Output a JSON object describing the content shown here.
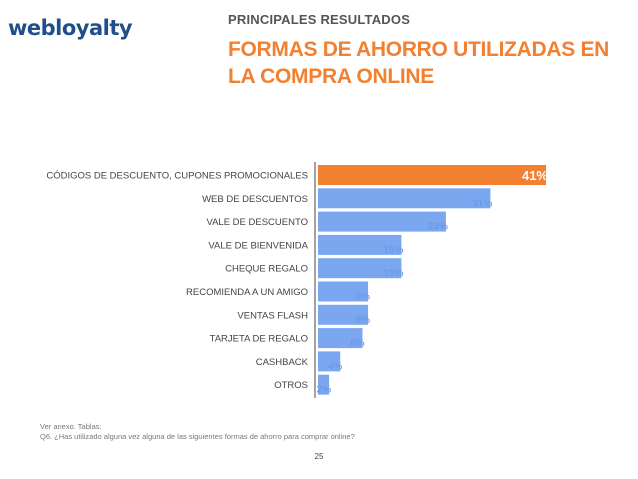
{
  "brand": {
    "logo_text": "webloyalty"
  },
  "header": {
    "eyebrow": "PRINCIPALES RESULTADOS",
    "title": "FORMAS DE AHORRO UTILIZADAS EN LA COMPRA ONLINE"
  },
  "colors": {
    "accent": "#f28030",
    "bar": "#7aa7f0",
    "value_label": "#6b9be8",
    "title": "#f28030"
  },
  "chart_data": {
    "type": "bar",
    "orientation": "horizontal",
    "title": "",
    "xlabel": "",
    "ylabel": "",
    "categories": [
      "CÓDIGOS DE DESCUENTO, CUPONES PROMOCIONALES",
      "WEB DE DESCUENTOS",
      "VALE DE DESCUENTO",
      "VALE DE BIENVENIDA",
      "CHEQUE REGALO",
      "RECOMIENDA A UN AMIGO",
      "VENTAS FLASH",
      "TARJETA DE REGALO",
      "CASHBACK",
      "OTROS"
    ],
    "values": [
      41,
      31,
      23,
      15,
      15,
      9,
      9,
      8,
      4,
      2
    ],
    "value_labels": [
      "41%",
      "31%",
      "23%",
      "15%",
      "15%",
      "9%",
      "9%",
      "8%",
      "4%",
      "2%"
    ],
    "highlight_index": 0,
    "xlim": [
      0,
      41
    ],
    "grid": false,
    "legend": "none"
  },
  "footer": {
    "note_line1": "Ver anexo. Tablas:",
    "note_line2": "Q6. ¿Has utilizado alguna vez alguna de las siguientes formas de ahorro para comprar online?",
    "page_number": "25"
  }
}
